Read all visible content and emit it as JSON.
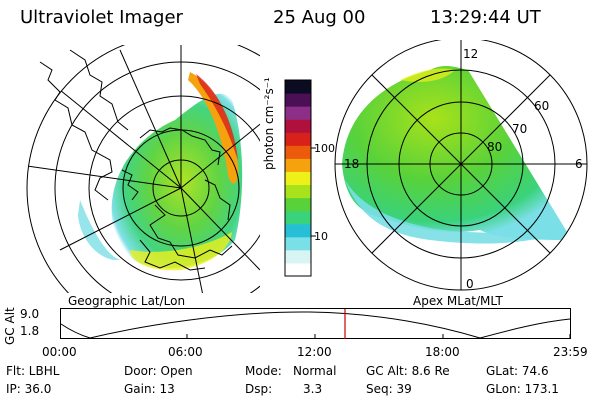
{
  "header": {
    "instrument": "Ultraviolet Imager",
    "date": "25 Aug 00",
    "time": "13:29:44 UT"
  },
  "colorbar": {
    "unit": "photon cm⁻²s⁻¹",
    "ticks": [
      "100",
      "10"
    ],
    "colors": [
      "#ffffff",
      "#d8f4f4",
      "#7adfe6",
      "#27bfd5",
      "#3ad27a",
      "#59d23a",
      "#a8e21a",
      "#eef01a",
      "#f6a20f",
      "#ec5a0b",
      "#d8211b",
      "#b0113c",
      "#8d2e88",
      "#4a0f55",
      "#0b0b22"
    ]
  },
  "left_panel": {
    "caption": "Geographic Lat/Lon"
  },
  "right_panel": {
    "caption": "Apex MLat/MLT",
    "mlt_labels": {
      "top": "12",
      "left": "18",
      "right": "6",
      "bottom": "0"
    },
    "mlat_labels": [
      "60",
      "70",
      "80"
    ]
  },
  "altitude_plot": {
    "axis_label": "GC Alt",
    "y_ticks": [
      "9.0",
      "1.8"
    ],
    "x_ticks": [
      "00:00",
      "06:00",
      "12:00",
      "18:00",
      "23:59"
    ],
    "marker_color": "#cc0000"
  },
  "info": {
    "col1": [
      "Flt: LBHL",
      "IP: 36.0"
    ],
    "col2": [
      "Door: Open",
      "Gain: 13"
    ],
    "mode_label": "Mode:",
    "mode_value": "Normal",
    "dsp_label": "Dsp:",
    "dsp_value": "3.3",
    "col4": [
      "GC Alt: 8.6 Re",
      "Seq: 39"
    ],
    "col5": [
      "GLat: 74.6",
      "GLon: 173.1"
    ]
  }
}
